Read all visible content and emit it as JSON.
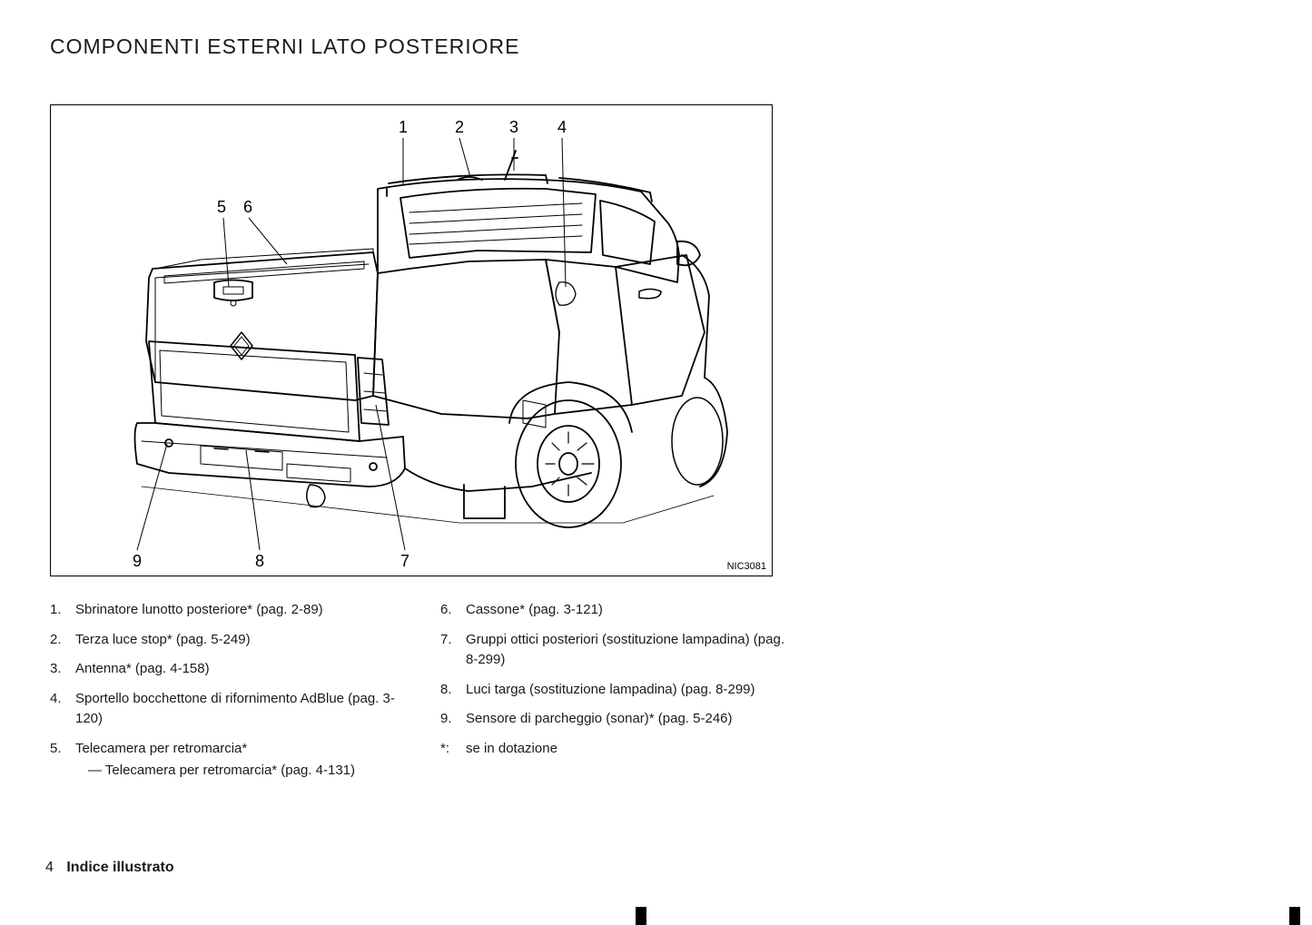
{
  "title": "COMPONENTI ESTERNI LATO POSTERIORE",
  "figure_id": "NIC3081",
  "callouts": {
    "c1": "1",
    "c2": "2",
    "c3": "3",
    "c4": "4",
    "c5": "5",
    "c6": "6",
    "c7": "7",
    "c8": "8",
    "c9": "9"
  },
  "legend_left": [
    {
      "n": "1.",
      "t": "Sbrinatore lunotto posteriore* (pag. 2-89)"
    },
    {
      "n": "2.",
      "t": "Terza luce stop* (pag. 5-249)"
    },
    {
      "n": "3.",
      "t": "Antenna* (pag. 4-158)"
    },
    {
      "n": "4.",
      "t": "Sportello bocchettone di rifornimento AdBlue (pag. 3-120)"
    },
    {
      "n": "5.",
      "t": "Telecamera per retromarcia*",
      "sub": "— Telecamera per retromarcia* (pag. 4-131)"
    }
  ],
  "legend_right": [
    {
      "n": "6.",
      "t": "Cassone* (pag. 3-121)"
    },
    {
      "n": "7.",
      "t": "Gruppi ottici posteriori (sostituzione lampadina) (pag. 8-299)"
    },
    {
      "n": "8.",
      "t": "Luci targa (sostituzione lampadina) (pag. 8-299)"
    },
    {
      "n": "9.",
      "t": "Sensore di parcheggio (sonar)* (pag. 5-246)"
    },
    {
      "n": "*:",
      "t": "se in dotazione"
    }
  ],
  "footer": {
    "page": "4",
    "label": "Indice illustrato"
  },
  "colors": {
    "stroke": "#000000",
    "bg": "#ffffff"
  }
}
